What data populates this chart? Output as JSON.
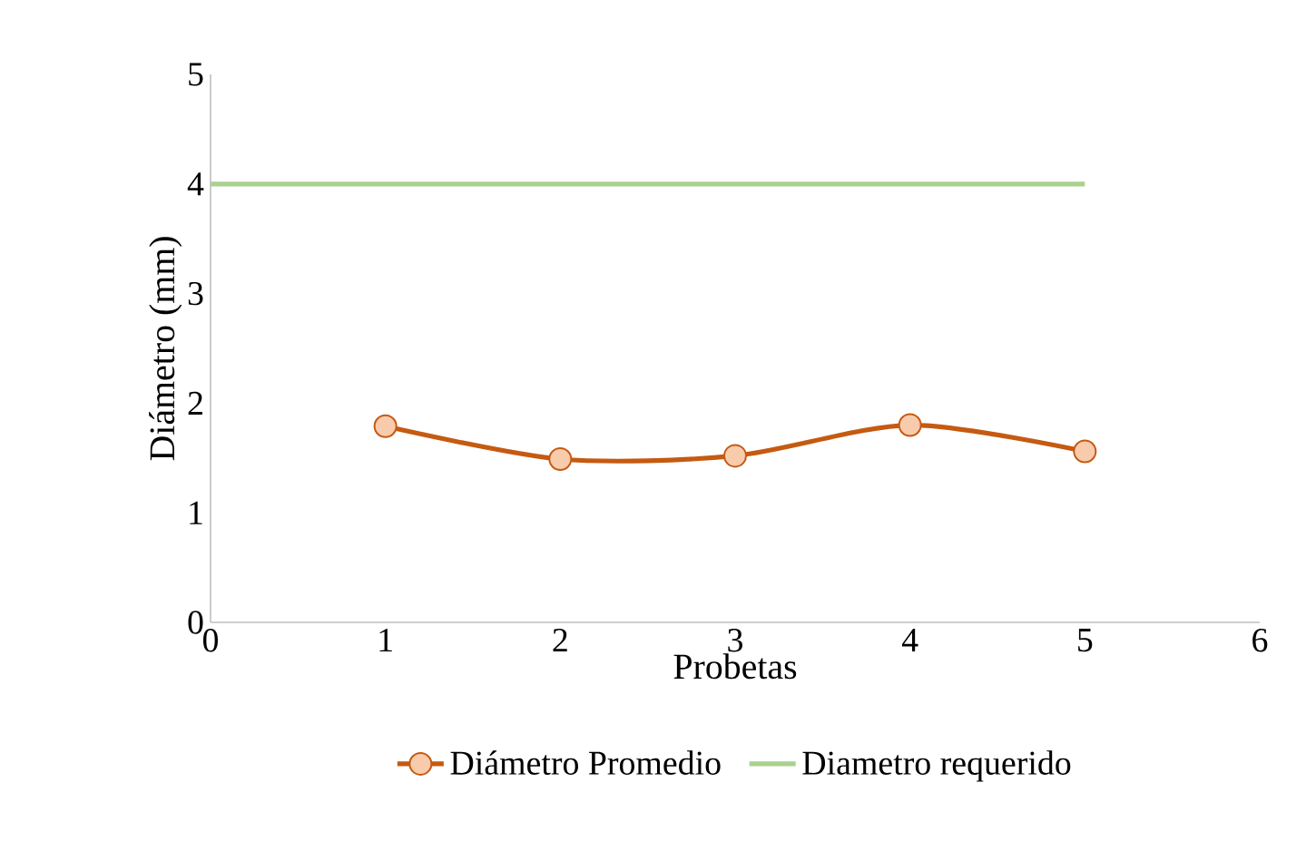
{
  "chart_data": {
    "type": "line",
    "xlabel": "Probetas",
    "ylabel": "Diámetro (mm)",
    "xlim": [
      0,
      6
    ],
    "xticks": [
      0,
      1,
      2,
      3,
      4,
      5,
      6
    ],
    "ylim": [
      0,
      5
    ],
    "yticks": [
      0,
      1,
      2,
      3,
      4,
      5
    ],
    "grid": false,
    "legend": "bottom",
    "marker": "circle",
    "line_style": "solid",
    "series": [
      {
        "name": "Diámetro Promedio",
        "color": "#c55a11",
        "x": [
          1,
          2,
          3,
          4,
          5
        ],
        "values": [
          1.79,
          1.49,
          1.52,
          1.8,
          1.56
        ]
      },
      {
        "name": "Diametro requerido",
        "color": "#a9d18e",
        "marker": "none",
        "x": [
          0,
          1,
          2,
          3,
          4,
          5
        ],
        "values": [
          4,
          4,
          4,
          4,
          4,
          4
        ]
      }
    ]
  }
}
